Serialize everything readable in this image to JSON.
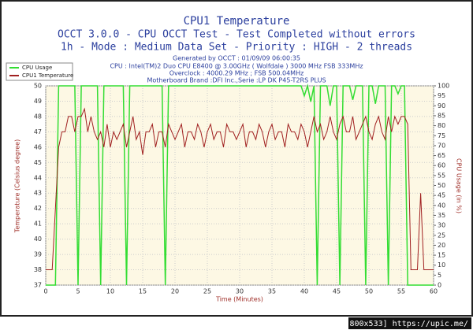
{
  "chart_data": {
    "type": "line",
    "title": "CPU1 Temperature",
    "subtitle": "OCCT 3.0.0 - CPU OCCT Test - Test Completed without errors",
    "subtitle2": "1h - Mode : Medium Data Set - Priority : HIGH - 2 threads",
    "info": [
      "Generated by OCCT : 01/09/09 06:00:35",
      "CPU : Intel(TM)2 Duo CPU E8400 @ 3.00GHz ( Wolfdale ) 3000 MHz FSB 333MHz",
      "Overclock : 4000.29 MHz ; FSB 500.04MHz",
      "Motherboard Brand :DFI Inc.,Serie :LP DK P45-T2RS PLUS"
    ],
    "x_label": "Time (Minutes)",
    "y_label": "Temperature (Celsius degree)",
    "y2_label": "CPU Usage (in %)",
    "watermark": "[800x533] https://upic.me/",
    "xlim": [
      0,
      60
    ],
    "xticks": [
      0,
      5,
      10,
      15,
      20,
      25,
      30,
      35,
      40,
      45,
      50,
      55,
      60
    ],
    "ylim": [
      37,
      50
    ],
    "yticks": [
      37,
      38,
      39,
      40,
      41,
      42,
      43,
      44,
      45,
      46,
      47,
      48,
      49,
      50
    ],
    "y2lim": [
      0,
      100
    ],
    "y2ticks": [
      0,
      5,
      10,
      15,
      20,
      25,
      30,
      35,
      40,
      45,
      50,
      55,
      60,
      65,
      70,
      75,
      80,
      85,
      90,
      95,
      100
    ],
    "grid": true,
    "legend": "top-left",
    "x": [
      0,
      0.5,
      1,
      1.5,
      2,
      2.5,
      3,
      3.5,
      4,
      4.5,
      5,
      5.5,
      6,
      6.5,
      7,
      7.5,
      8,
      8.5,
      9,
      9.5,
      10,
      10.5,
      11,
      11.5,
      12,
      12.5,
      13,
      13.5,
      14,
      14.5,
      15,
      15.5,
      16,
      16.5,
      17,
      17.5,
      18,
      18.5,
      19,
      19.5,
      20,
      20.5,
      21,
      21.5,
      22,
      22.5,
      23,
      23.5,
      24,
      24.5,
      25,
      25.5,
      26,
      26.5,
      27,
      27.5,
      28,
      28.5,
      29,
      29.5,
      30,
      30.5,
      31,
      31.5,
      32,
      32.5,
      33,
      33.5,
      34,
      34.5,
      35,
      35.5,
      36,
      36.5,
      37,
      37.5,
      38,
      38.5,
      39,
      39.5,
      40,
      40.5,
      41,
      41.5,
      42,
      42.5,
      43,
      43.5,
      44,
      44.5,
      45,
      45.5,
      46,
      46.5,
      47,
      47.5,
      48,
      48.5,
      49,
      49.5,
      50,
      50.5,
      51,
      51.5,
      52,
      52.5,
      53,
      53.5,
      54,
      54.5,
      55,
      55.5,
      56,
      56.5,
      57,
      57.5,
      58,
      58.5,
      59,
      59.5,
      60
    ],
    "series": [
      {
        "name": "CPU Usage",
        "color": "#33dd33",
        "axis": "y2",
        "values": [
          0,
          0,
          0,
          0,
          100,
          100,
          100,
          100,
          100,
          100,
          0,
          100,
          100,
          100,
          100,
          100,
          100,
          0,
          100,
          100,
          100,
          100,
          100,
          100,
          100,
          0,
          100,
          100,
          100,
          100,
          100,
          100,
          100,
          100,
          100,
          100,
          100,
          0,
          100,
          100,
          100,
          100,
          100,
          100,
          100,
          100,
          100,
          100,
          100,
          100,
          100,
          100,
          100,
          100,
          100,
          100,
          100,
          100,
          100,
          100,
          100,
          100,
          100,
          100,
          100,
          100,
          100,
          100,
          100,
          100,
          100,
          100,
          100,
          100,
          100,
          100,
          100,
          100,
          100,
          100,
          95,
          100,
          92,
          100,
          0,
          100,
          100,
          100,
          90,
          100,
          100,
          0,
          100,
          100,
          100,
          93,
          100,
          100,
          100,
          0,
          100,
          100,
          91,
          100,
          100,
          100,
          0,
          100,
          100,
          96,
          100,
          100,
          0,
          0,
          0,
          0,
          0,
          0,
          0,
          0,
          0
        ]
      },
      {
        "name": "CPU1 Temperature",
        "color": "#a02020",
        "values": [
          38,
          38,
          38,
          42,
          46,
          47,
          47,
          48,
          48,
          47,
          48,
          48,
          48.5,
          47,
          48,
          47,
          46.5,
          47,
          46,
          47.5,
          46,
          47,
          46.5,
          47,
          47.5,
          46,
          47,
          48,
          46.5,
          47,
          45.5,
          47,
          47,
          47.5,
          46,
          47,
          47,
          46,
          47.5,
          47,
          46.5,
          47,
          47.5,
          46,
          47,
          47,
          46.5,
          47.5,
          47,
          46,
          47,
          47.5,
          46.5,
          47,
          47,
          46,
          47.5,
          47,
          47,
          46.5,
          47,
          47.5,
          46,
          47,
          47,
          46.5,
          47.5,
          47,
          46,
          47,
          47.5,
          46.5,
          47,
          47,
          46,
          47.5,
          47,
          47,
          46.5,
          47.5,
          47,
          46,
          47,
          48,
          47,
          47.5,
          46.5,
          47,
          48,
          47,
          46.5,
          47.5,
          48,
          47,
          47,
          48,
          46.5,
          47,
          47.5,
          48,
          47,
          46.5,
          47.5,
          48,
          47,
          46.5,
          48,
          47,
          48,
          47.5,
          48,
          48,
          47.5,
          38,
          38,
          38,
          43,
          38,
          38,
          38,
          38
        ]
      }
    ]
  }
}
